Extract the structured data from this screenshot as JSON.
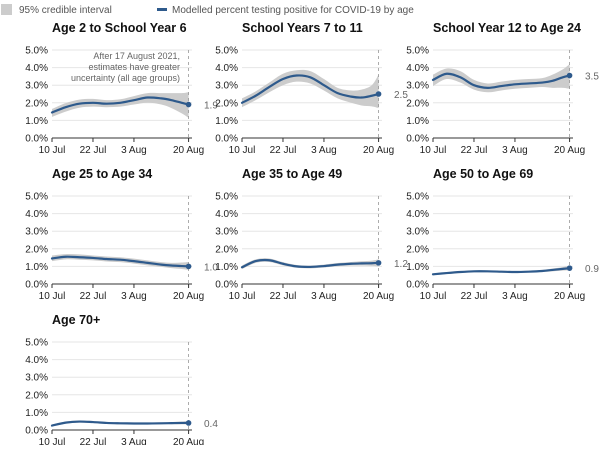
{
  "legend": {
    "interval_label": "95% credible interval",
    "line_label": "Modelled percent testing positive for COVID-19 by age",
    "interval_color": "#cccccc",
    "line_color": "#2e5a8c"
  },
  "note": {
    "lines": [
      "After 17 August 2021,",
      "estimates have greater",
      "uncertainty (all age groups)"
    ]
  },
  "chart_data": [
    {
      "type": "area",
      "title": "Age 2 to School Year 6",
      "x_ticks": [
        "10 Jul",
        "22 Jul",
        "3 Aug",
        "20 Aug"
      ],
      "y_ticks": [
        "0.0%",
        "1.0%",
        "2.0%",
        "3.0%",
        "4.0%",
        "5.0%"
      ],
      "ylim": [
        0,
        5
      ],
      "xlim_days": [
        0,
        41
      ],
      "end_label": "1.9",
      "series": [
        {
          "x": [
            0,
            4,
            8,
            12,
            16,
            20,
            24,
            28,
            32,
            35,
            38,
            40
          ],
          "y": [
            1.45,
            1.75,
            1.95,
            2.0,
            1.95,
            2.0,
            2.15,
            2.3,
            2.25,
            2.15,
            2.0,
            1.9
          ],
          "lower": [
            1.2,
            1.5,
            1.72,
            1.78,
            1.75,
            1.78,
            1.9,
            2.0,
            1.9,
            1.7,
            1.4,
            1.15
          ],
          "upper": [
            1.65,
            1.98,
            2.18,
            2.22,
            2.15,
            2.2,
            2.38,
            2.55,
            2.55,
            2.55,
            2.55,
            2.6
          ]
        }
      ]
    },
    {
      "type": "area",
      "title": "School Years 7 to 11",
      "x_ticks": [
        "10 Jul",
        "22 Jul",
        "3 Aug",
        "20 Aug"
      ],
      "y_ticks": [
        "0.0%",
        "1.0%",
        "2.0%",
        "3.0%",
        "4.0%",
        "5.0%"
      ],
      "ylim": [
        0,
        5
      ],
      "xlim_days": [
        0,
        41
      ],
      "end_label": "2.5",
      "series": [
        {
          "x": [
            0,
            4,
            8,
            12,
            16,
            20,
            24,
            28,
            32,
            35,
            38,
            40
          ],
          "y": [
            2.0,
            2.4,
            2.9,
            3.35,
            3.55,
            3.45,
            3.0,
            2.55,
            2.35,
            2.3,
            2.4,
            2.5
          ],
          "lower": [
            1.75,
            2.15,
            2.6,
            3.0,
            3.2,
            3.1,
            2.7,
            2.25,
            2.0,
            1.85,
            1.8,
            1.7
          ],
          "upper": [
            2.25,
            2.65,
            3.15,
            3.65,
            3.85,
            3.8,
            3.35,
            2.85,
            2.7,
            2.75,
            3.0,
            3.6
          ]
        }
      ]
    },
    {
      "type": "area",
      "title": "School Year 12 to Age 24",
      "x_ticks": [
        "10 Jul",
        "22 Jul",
        "3 Aug",
        "20 Aug"
      ],
      "y_ticks": [
        "0.0%",
        "1.0%",
        "2.0%",
        "3.0%",
        "4.0%",
        "5.0%"
      ],
      "ylim": [
        0,
        5
      ],
      "xlim_days": [
        0,
        41
      ],
      "end_label": "3.5",
      "series": [
        {
          "x": [
            0,
            4,
            8,
            12,
            16,
            20,
            24,
            28,
            32,
            35,
            38,
            40
          ],
          "y": [
            3.3,
            3.65,
            3.45,
            3.0,
            2.85,
            2.95,
            3.05,
            3.1,
            3.15,
            3.25,
            3.45,
            3.55
          ],
          "lower": [
            2.95,
            3.35,
            3.15,
            2.75,
            2.6,
            2.7,
            2.8,
            2.85,
            2.9,
            2.85,
            2.85,
            2.8
          ],
          "upper": [
            3.6,
            3.95,
            3.8,
            3.3,
            3.1,
            3.2,
            3.3,
            3.35,
            3.4,
            3.6,
            3.9,
            4.2
          ]
        }
      ]
    },
    {
      "type": "area",
      "title": "Age 25 to Age 34",
      "x_ticks": [
        "10 Jul",
        "22 Jul",
        "3 Aug",
        "20 Aug"
      ],
      "y_ticks": [
        "0.0%",
        "1.0%",
        "2.0%",
        "3.0%",
        "4.0%",
        "5.0%"
      ],
      "ylim": [
        0,
        5
      ],
      "xlim_days": [
        0,
        41
      ],
      "end_label": "1.0",
      "series": [
        {
          "x": [
            0,
            4,
            8,
            12,
            16,
            20,
            24,
            28,
            32,
            35,
            38,
            40
          ],
          "y": [
            1.45,
            1.55,
            1.52,
            1.48,
            1.42,
            1.38,
            1.3,
            1.2,
            1.1,
            1.05,
            1.02,
            1.0
          ],
          "lower": [
            1.3,
            1.4,
            1.38,
            1.34,
            1.28,
            1.24,
            1.16,
            1.06,
            0.97,
            0.9,
            0.85,
            0.8
          ],
          "upper": [
            1.62,
            1.7,
            1.68,
            1.62,
            1.56,
            1.52,
            1.44,
            1.34,
            1.24,
            1.2,
            1.22,
            1.25
          ]
        }
      ]
    },
    {
      "type": "area",
      "title": "Age 35 to Age 49",
      "x_ticks": [
        "10 Jul",
        "22 Jul",
        "3 Aug",
        "20 Aug"
      ],
      "y_ticks": [
        "0.0%",
        "1.0%",
        "2.0%",
        "3.0%",
        "4.0%",
        "5.0%"
      ],
      "ylim": [
        0,
        5
      ],
      "xlim_days": [
        0,
        41
      ],
      "end_label": "1.2",
      "series": [
        {
          "x": [
            0,
            4,
            8,
            12,
            16,
            20,
            24,
            28,
            32,
            35,
            38,
            40
          ],
          "y": [
            0.95,
            1.3,
            1.35,
            1.15,
            1.0,
            0.97,
            1.02,
            1.1,
            1.15,
            1.17,
            1.18,
            1.2
          ],
          "lower": [
            0.85,
            1.2,
            1.25,
            1.06,
            0.92,
            0.89,
            0.94,
            1.01,
            1.05,
            1.05,
            1.03,
            1.0
          ],
          "upper": [
            1.05,
            1.4,
            1.45,
            1.24,
            1.08,
            1.05,
            1.1,
            1.19,
            1.25,
            1.29,
            1.33,
            1.4
          ]
        }
      ]
    },
    {
      "type": "area",
      "title": "Age 50 to Age 69",
      "x_ticks": [
        "10 Jul",
        "22 Jul",
        "3 Aug",
        "20 Aug"
      ],
      "y_ticks": [
        "0.0%",
        "1.0%",
        "2.0%",
        "3.0%",
        "4.0%",
        "5.0%"
      ],
      "ylim": [
        0,
        5
      ],
      "xlim_days": [
        0,
        41
      ],
      "end_label": "0.9",
      "series": [
        {
          "x": [
            0,
            4,
            8,
            12,
            16,
            20,
            24,
            28,
            32,
            35,
            38,
            40
          ],
          "y": [
            0.55,
            0.62,
            0.68,
            0.72,
            0.72,
            0.7,
            0.68,
            0.7,
            0.74,
            0.8,
            0.86,
            0.9
          ],
          "lower": [
            0.5,
            0.57,
            0.63,
            0.67,
            0.67,
            0.65,
            0.63,
            0.65,
            0.68,
            0.72,
            0.76,
            0.78
          ],
          "upper": [
            0.6,
            0.67,
            0.73,
            0.77,
            0.77,
            0.75,
            0.73,
            0.75,
            0.8,
            0.88,
            0.96,
            1.05
          ]
        }
      ]
    },
    {
      "type": "area",
      "title": "Age 70+",
      "x_ticks": [
        "10 Jul",
        "22 Jul",
        "3 Aug",
        "20 Aug"
      ],
      "y_ticks": [
        "0.0%",
        "1.0%",
        "2.0%",
        "3.0%",
        "4.0%",
        "5.0%"
      ],
      "ylim": [
        0,
        5
      ],
      "xlim_days": [
        0,
        41
      ],
      "end_label": "0.4",
      "series": [
        {
          "x": [
            0,
            4,
            8,
            12,
            16,
            20,
            24,
            28,
            32,
            35,
            38,
            40
          ],
          "y": [
            0.25,
            0.42,
            0.48,
            0.45,
            0.4,
            0.38,
            0.37,
            0.37,
            0.38,
            0.39,
            0.4,
            0.4
          ],
          "lower": [
            0.2,
            0.36,
            0.42,
            0.4,
            0.35,
            0.33,
            0.32,
            0.32,
            0.33,
            0.33,
            0.32,
            0.3
          ],
          "upper": [
            0.3,
            0.48,
            0.54,
            0.5,
            0.45,
            0.43,
            0.42,
            0.42,
            0.43,
            0.45,
            0.48,
            0.52
          ]
        }
      ]
    }
  ]
}
